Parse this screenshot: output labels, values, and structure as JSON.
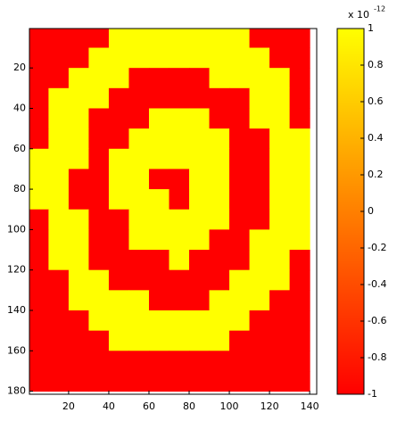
{
  "chart_data": {
    "type": "heatmap",
    "x": [
      5,
      15,
      25,
      35,
      45,
      55,
      65,
      75,
      85,
      95,
      105,
      115,
      125,
      135
    ],
    "y": [
      5,
      15,
      25,
      35,
      45,
      55,
      65,
      75,
      85,
      95,
      105,
      115,
      125,
      135,
      145,
      155,
      165,
      175
    ],
    "z": [
      [
        -1,
        -1,
        -1,
        -1,
        1,
        1,
        1,
        1,
        1,
        1,
        1,
        -1,
        -1,
        -1
      ],
      [
        -1,
        -1,
        -1,
        1,
        1,
        1,
        1,
        1,
        1,
        1,
        1,
        1,
        -1,
        -1
      ],
      [
        -1,
        -1,
        1,
        1,
        1,
        -1,
        -1,
        -1,
        -1,
        1,
        1,
        1,
        1,
        -1
      ],
      [
        -1,
        1,
        1,
        1,
        -1,
        -1,
        -1,
        -1,
        -1,
        -1,
        -1,
        1,
        1,
        -1
      ],
      [
        -1,
        1,
        1,
        -1,
        -1,
        -1,
        1,
        1,
        1,
        -1,
        -1,
        1,
        1,
        -1
      ],
      [
        -1,
        1,
        1,
        -1,
        -1,
        1,
        1,
        1,
        1,
        1,
        -1,
        -1,
        1,
        1
      ],
      [
        1,
        1,
        1,
        -1,
        1,
        1,
        1,
        1,
        1,
        1,
        -1,
        -1,
        1,
        1
      ],
      [
        1,
        1,
        -1,
        -1,
        1,
        1,
        -1,
        -1,
        1,
        1,
        -1,
        -1,
        1,
        1
      ],
      [
        1,
        1,
        -1,
        -1,
        1,
        1,
        1,
        -1,
        1,
        1,
        -1,
        -1,
        1,
        1
      ],
      [
        -1,
        1,
        1,
        -1,
        -1,
        1,
        1,
        1,
        1,
        1,
        -1,
        -1,
        1,
        1
      ],
      [
        -1,
        1,
        1,
        -1,
        -1,
        1,
        1,
        1,
        1,
        -1,
        -1,
        1,
        1,
        1
      ],
      [
        -1,
        1,
        1,
        -1,
        -1,
        -1,
        -1,
        1,
        -1,
        -1,
        -1,
        1,
        1,
        -1
      ],
      [
        -1,
        -1,
        1,
        1,
        -1,
        -1,
        -1,
        -1,
        -1,
        -1,
        1,
        1,
        1,
        -1
      ],
      [
        -1,
        -1,
        1,
        1,
        1,
        1,
        -1,
        -1,
        -1,
        1,
        1,
        1,
        -1,
        -1
      ],
      [
        -1,
        -1,
        -1,
        1,
        1,
        1,
        1,
        1,
        1,
        1,
        1,
        -1,
        -1,
        -1
      ],
      [
        -1,
        -1,
        -1,
        -1,
        1,
        1,
        1,
        1,
        1,
        1,
        -1,
        -1,
        -1,
        -1
      ],
      [
        -1,
        -1,
        -1,
        -1,
        -1,
        -1,
        -1,
        -1,
        -1,
        -1,
        -1,
        -1,
        -1,
        -1
      ],
      [
        -1,
        -1,
        -1,
        -1,
        -1,
        -1,
        -1,
        -1,
        -1,
        -1,
        -1,
        -1,
        -1,
        -1
      ]
    ],
    "xlim": [
      0.5,
      143.5
    ],
    "ylim": [
      0.5,
      181.5
    ],
    "xticks": [
      20,
      40,
      60,
      80,
      100,
      120,
      140
    ],
    "yticks": [
      20,
      40,
      60,
      80,
      100,
      120,
      140,
      160,
      180
    ],
    "colormap": [
      "#ff0000",
      "#ffff00"
    ],
    "clim": [
      -1,
      1
    ],
    "cticks": [
      -1,
      -0.8,
      -0.6,
      -0.4,
      -0.2,
      0,
      0.2,
      0.4,
      0.6,
      0.8,
      1
    ],
    "cscale_base": "x 10",
    "cscale_exp": "-12"
  }
}
